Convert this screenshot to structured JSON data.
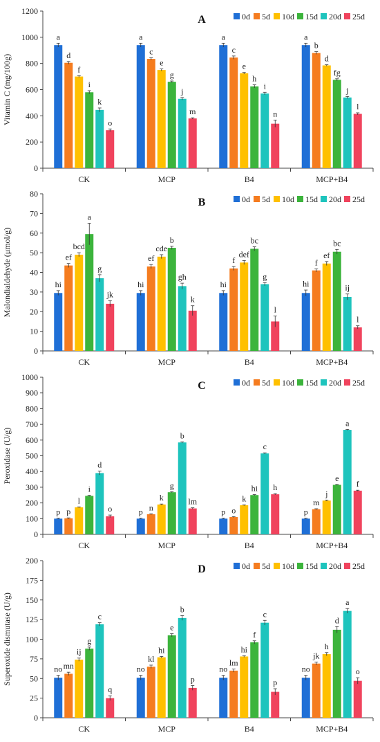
{
  "legend_labels": [
    "0d",
    "5d",
    "10d",
    "15d",
    "20d",
    "25d"
  ],
  "colors": [
    "#1f6fd6",
    "#f57c1f",
    "#ffc000",
    "#3cb43c",
    "#1ec4bd",
    "#f0435d"
  ],
  "chart_data": [
    {
      "type": "bar",
      "title": "A",
      "ylabel": "Vitamin C (mg/100g)",
      "categories": [
        "CK",
        "MCP",
        "B4",
        "MCP+B4"
      ],
      "ylim": [
        0,
        1200
      ],
      "yticks": [
        0,
        200,
        400,
        600,
        800,
        1000,
        1200
      ],
      "series": [
        {
          "name": "0d",
          "values": [
            940,
            940,
            940,
            940
          ],
          "errors": [
            15,
            15,
            15,
            15
          ],
          "letters": [
            "a",
            "a",
            "a",
            "a"
          ]
        },
        {
          "name": "5d",
          "values": [
            805,
            835,
            845,
            880
          ],
          "errors": [
            10,
            8,
            12,
            10
          ],
          "letters": [
            "d",
            "c",
            "c",
            "b"
          ]
        },
        {
          "name": "10d",
          "values": [
            700,
            750,
            725,
            785
          ],
          "errors": [
            6,
            8,
            6,
            5
          ],
          "letters": [
            "f",
            "e",
            "e",
            "d"
          ]
        },
        {
          "name": "15d",
          "values": [
            580,
            660,
            625,
            675
          ],
          "errors": [
            12,
            6,
            12,
            8
          ],
          "letters": [
            "i",
            "g",
            "h",
            "fg"
          ]
        },
        {
          "name": "20d",
          "values": [
            445,
            530,
            570,
            540
          ],
          "errors": [
            15,
            10,
            10,
            8
          ],
          "letters": [
            "k",
            "j",
            "i",
            "j"
          ]
        },
        {
          "name": "25d",
          "values": [
            290,
            380,
            340,
            415
          ],
          "errors": [
            10,
            5,
            28,
            8
          ],
          "letters": [
            "o",
            "m",
            "n",
            "l"
          ]
        }
      ]
    },
    {
      "type": "bar",
      "title": "B",
      "ylabel": "Malondialdehyde (μmol/g)",
      "categories": [
        "CK",
        "MCP",
        "B4",
        "MCP+B4"
      ],
      "ylim": [
        0,
        80
      ],
      "yticks": [
        0,
        10,
        20,
        30,
        40,
        50,
        60,
        70,
        80
      ],
      "series": [
        {
          "name": "0d",
          "values": [
            29.5,
            29.5,
            29.5,
            29.5
          ],
          "errors": [
            1.2,
            1.2,
            1.2,
            1.5
          ],
          "letters": [
            "hi",
            "hi",
            "hi",
            "hi"
          ]
        },
        {
          "name": "5d",
          "values": [
            43.5,
            43,
            42,
            41
          ],
          "errors": [
            1,
            1,
            1,
            0.8
          ],
          "letters": [
            "ef",
            "ef",
            "f",
            "f"
          ]
        },
        {
          "name": "10d",
          "values": [
            49,
            48,
            45,
            44.5
          ],
          "errors": [
            1,
            1,
            1,
            1
          ],
          "letters": [
            "bcd",
            "cde",
            "def",
            "ef"
          ]
        },
        {
          "name": "15d",
          "values": [
            59.5,
            52.5,
            52,
            50.5
          ],
          "errors": [
            5.5,
            0.8,
            1,
            1.2
          ],
          "letters": [
            "a",
            "b",
            "bc",
            "bc"
          ]
        },
        {
          "name": "20d",
          "values": [
            37,
            33,
            34,
            27.5
          ],
          "errors": [
            1.8,
            1.5,
            0.8,
            1.5
          ],
          "letters": [
            "g",
            "gh",
            "g",
            "ij"
          ]
        },
        {
          "name": "25d",
          "values": [
            24,
            20.5,
            15,
            12
          ],
          "errors": [
            1.5,
            2.5,
            2.8,
            0.8
          ],
          "letters": [
            "jk",
            "k",
            "l",
            "l"
          ]
        }
      ]
    },
    {
      "type": "bar",
      "title": "C",
      "ylabel": "Peroxidase (U/g)",
      "categories": [
        "CK",
        "MCP",
        "B4",
        "MCP+B4"
      ],
      "ylim": [
        0,
        1000
      ],
      "yticks": [
        0,
        100,
        200,
        300,
        400,
        500,
        600,
        700,
        800,
        900,
        1000
      ],
      "series": [
        {
          "name": "0d",
          "values": [
            100,
            100,
            100,
            100
          ],
          "errors": [
            3,
            3,
            3,
            3
          ],
          "letters": [
            "p",
            "p",
            "p",
            "p"
          ]
        },
        {
          "name": "5d",
          "values": [
            102,
            128,
            110,
            160
          ],
          "errors": [
            3,
            3,
            3,
            3
          ],
          "letters": [
            "p",
            "n",
            "o",
            "m"
          ]
        },
        {
          "name": "10d",
          "values": [
            172,
            190,
            185,
            215
          ],
          "errors": [
            3,
            3,
            3,
            3
          ],
          "letters": [
            "l",
            "k",
            "k",
            "j"
          ]
        },
        {
          "name": "15d",
          "values": [
            245,
            268,
            250,
            315
          ],
          "errors": [
            3,
            3,
            3,
            3
          ],
          "letters": [
            "i",
            "g",
            "hi",
            "e"
          ]
        },
        {
          "name": "20d",
          "values": [
            390,
            585,
            515,
            665
          ],
          "errors": [
            12,
            4,
            4,
            3
          ],
          "letters": [
            "d",
            "b",
            "c",
            "a"
          ]
        },
        {
          "name": "25d",
          "values": [
            115,
            165,
            255,
            278
          ],
          "errors": [
            8,
            4,
            4,
            3
          ],
          "letters": [
            "o",
            "lm",
            "h",
            "f"
          ]
        }
      ]
    },
    {
      "type": "bar",
      "title": "D",
      "ylabel": "Superoxide dismutase (U/g)",
      "categories": [
        "CK",
        "MCP",
        "B4",
        "MCP+B4"
      ],
      "ylim": [
        0,
        200
      ],
      "yticks": [
        0,
        25,
        50,
        75,
        100,
        125,
        150,
        175,
        200
      ],
      "series": [
        {
          "name": "0d",
          "values": [
            51,
            51,
            51,
            51
          ],
          "errors": [
            3,
            3,
            3,
            3
          ],
          "letters": [
            "no",
            "no",
            "no",
            "no"
          ]
        },
        {
          "name": "5d",
          "values": [
            56,
            65,
            60,
            69
          ],
          "errors": [
            2,
            2,
            2,
            2
          ],
          "letters": [
            "mn",
            "kl",
            "lm",
            "jk"
          ]
        },
        {
          "name": "10d",
          "values": [
            74,
            77,
            78,
            81
          ],
          "errors": [
            2,
            1,
            1,
            2
          ],
          "letters": [
            "ij",
            "hi",
            "hi",
            "h"
          ]
        },
        {
          "name": "15d",
          "values": [
            88,
            105,
            96,
            112
          ],
          "errors": [
            2,
            2,
            2,
            4
          ],
          "letters": [
            "g",
            "e",
            "f",
            "d"
          ]
        },
        {
          "name": "20d",
          "values": [
            119,
            127,
            121,
            136
          ],
          "errors": [
            2,
            3,
            3,
            3
          ],
          "letters": [
            "c",
            "b",
            "c",
            "a"
          ]
        },
        {
          "name": "25d",
          "values": [
            25,
            38,
            33,
            47
          ],
          "errors": [
            3,
            3,
            4,
            4
          ],
          "letters": [
            "q",
            "p",
            "p",
            "o"
          ]
        }
      ]
    }
  ]
}
